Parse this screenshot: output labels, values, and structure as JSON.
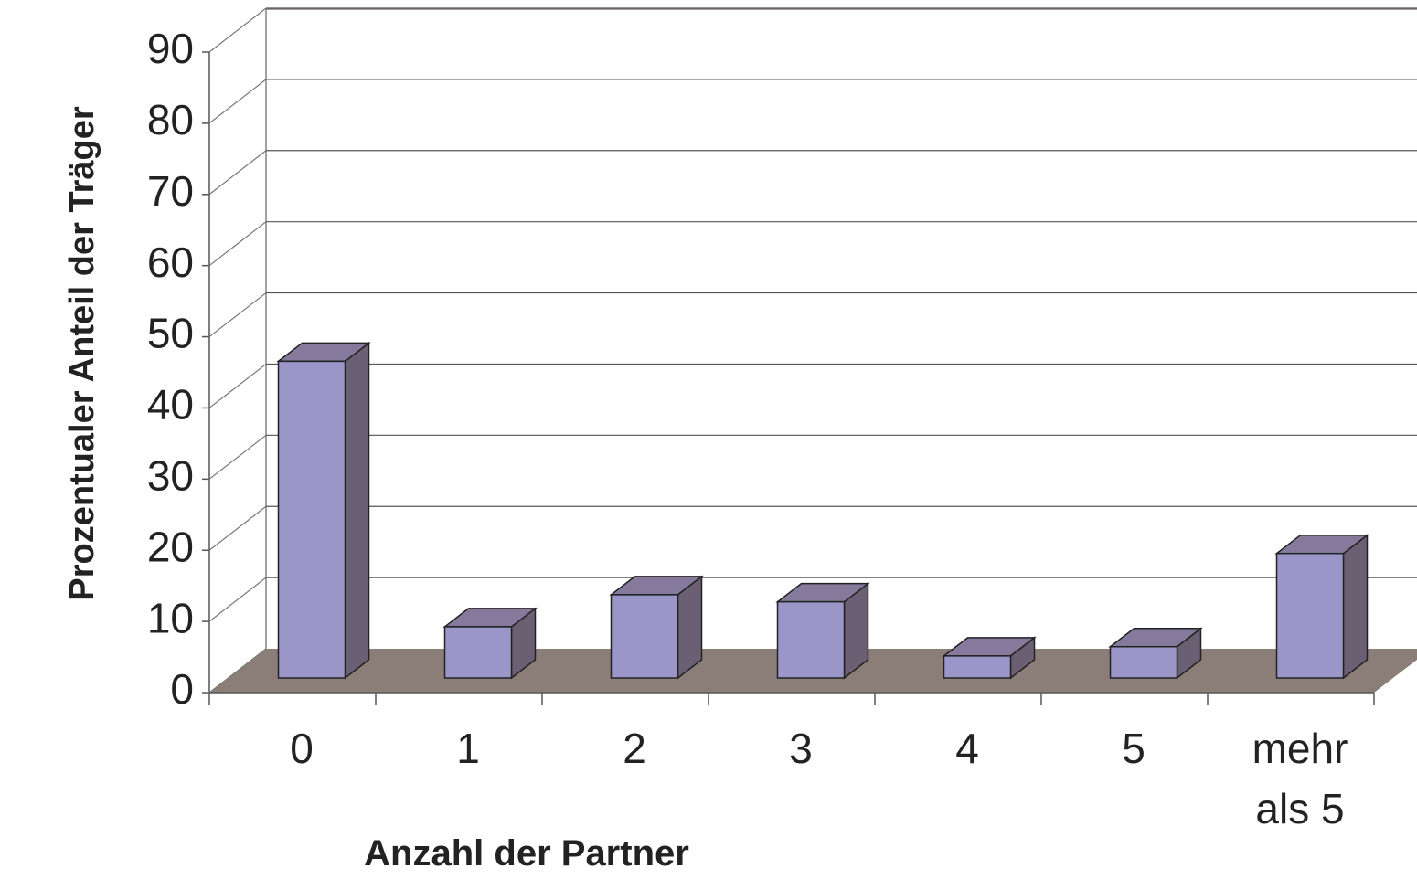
{
  "chart_data": {
    "type": "bar3d",
    "categories": [
      "0",
      "1",
      "2",
      "3",
      "4",
      "5",
      "mehr als 5"
    ],
    "values": [
      44.5,
      7.2,
      11.7,
      10.7,
      3.1,
      4.4,
      17.5
    ],
    "color": "#9b96c8",
    "ylim": [
      0,
      90
    ],
    "yticks": [
      0,
      10,
      20,
      30,
      40,
      50,
      60,
      70,
      80,
      90
    ],
    "grid": true,
    "y_label": "Prozentualer Anteil der Träger",
    "x_label": "Anzahl der Partner"
  }
}
